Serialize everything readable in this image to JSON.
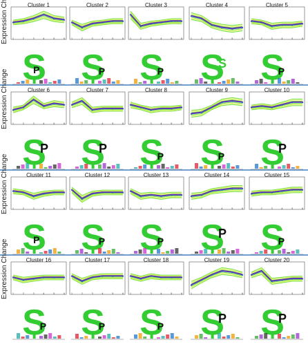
{
  "side_label": "Expression Change",
  "colors": {
    "separator": "#6f9fd0",
    "line_green": "#6fe03a",
    "line_yellow": "#d8ee40",
    "line_cyan": "#49c4d6",
    "line_blue": "#3a4fc9",
    "line_purple": "#6a2fa8",
    "logo_S": "#33cc33",
    "logo_P": "#111111"
  },
  "chart_data": [
    {
      "type": "line",
      "title": "Cluster 1",
      "x": [
        1,
        2,
        3,
        4,
        5,
        6
      ],
      "series": [
        {
          "values": [
            0.0,
            0.1,
            0.3,
            0.6,
            0.3,
            0.2
          ]
        }
      ]
    },
    {
      "type": "line",
      "title": "Cluster 2",
      "x": [
        1,
        2,
        3,
        4,
        5,
        6
      ],
      "series": [
        {
          "values": [
            0.0,
            -0.4,
            -0.1,
            0.0,
            0.1,
            0.1
          ]
        }
      ]
    },
    {
      "type": "line",
      "title": "Cluster 3",
      "x": [
        1,
        2,
        3,
        4,
        5,
        6
      ],
      "series": [
        {
          "values": [
            0.6,
            -0.3,
            -0.1,
            0.0,
            0.1,
            0.1
          ]
        }
      ]
    },
    {
      "type": "line",
      "title": "Cluster 4",
      "x": [
        1,
        2,
        3,
        4,
        5,
        6
      ],
      "series": [
        {
          "values": [
            0.5,
            0.3,
            -0.2,
            -0.4,
            -0.5,
            -0.4
          ]
        }
      ]
    },
    {
      "type": "line",
      "title": "Cluster 5",
      "x": [
        1,
        2,
        3,
        4,
        5,
        6
      ],
      "series": [
        {
          "values": [
            0.1,
            0.0,
            -0.3,
            -0.2,
            -0.2,
            -0.1
          ]
        }
      ]
    },
    {
      "type": "line",
      "title": "Cluster 6",
      "x": [
        1,
        2,
        3,
        4,
        5,
        6
      ],
      "series": [
        {
          "values": [
            -0.2,
            0.0,
            0.6,
            0.1,
            0.3,
            0.2
          ]
        }
      ]
    },
    {
      "type": "line",
      "title": "Cluster 7",
      "x": [
        1,
        2,
        3,
        4,
        5,
        6
      ],
      "series": [
        {
          "values": [
            0.2,
            0.5,
            -0.2,
            -0.1,
            -0.1,
            -0.1
          ]
        }
      ]
    },
    {
      "type": "line",
      "title": "Cluster 8",
      "x": [
        1,
        2,
        3,
        4,
        5,
        6
      ],
      "series": [
        {
          "values": [
            0.2,
            0.0,
            -0.2,
            -0.1,
            -0.1,
            0.0
          ]
        }
      ]
    },
    {
      "type": "line",
      "title": "Cluster 9",
      "x": [
        1,
        2,
        3,
        4,
        5,
        6
      ],
      "series": [
        {
          "values": [
            -0.5,
            -0.4,
            0.0,
            0.4,
            0.5,
            0.4
          ]
        }
      ]
    },
    {
      "type": "line",
      "title": "Cluster 10",
      "x": [
        1,
        2,
        3,
        4,
        5,
        6
      ],
      "series": [
        {
          "values": [
            0.0,
            0.1,
            0.0,
            0.2,
            0.4,
            0.4
          ]
        }
      ]
    },
    {
      "type": "line",
      "title": "Cluster 11",
      "x": [
        1,
        2,
        3,
        4,
        5,
        6
      ],
      "series": [
        {
          "values": [
            0.1,
            0.0,
            -0.3,
            -0.1,
            0.0,
            0.0
          ]
        }
      ]
    },
    {
      "type": "line",
      "title": "Cluster 12",
      "x": [
        1,
        2,
        3,
        4,
        5,
        6
      ],
      "series": [
        {
          "values": [
            0.2,
            -0.5,
            -0.1,
            0.0,
            0.0,
            0.0
          ]
        }
      ]
    },
    {
      "type": "line",
      "title": "Cluster 13",
      "x": [
        1,
        2,
        3,
        4,
        5,
        6
      ],
      "series": [
        {
          "values": [
            0.1,
            -0.3,
            -0.2,
            -0.3,
            -0.2,
            -0.2
          ]
        }
      ]
    },
    {
      "type": "line",
      "title": "Cluster 14",
      "x": [
        1,
        2,
        3,
        4,
        5,
        6
      ],
      "series": [
        {
          "values": [
            -0.3,
            -0.2,
            0.1,
            0.2,
            0.3,
            0.3
          ]
        }
      ]
    },
    {
      "type": "line",
      "title": "Cluster 15",
      "x": [
        1,
        2,
        3,
        4,
        5,
        6
      ],
      "series": [
        {
          "values": [
            -0.1,
            0.0,
            0.0,
            0.1,
            0.2,
            0.2
          ]
        }
      ]
    },
    {
      "type": "line",
      "title": "Cluster 16",
      "x": [
        1,
        2,
        3,
        4,
        5,
        6
      ],
      "series": [
        {
          "values": [
            0.0,
            -0.2,
            -0.1,
            0.0,
            0.0,
            0.0
          ]
        }
      ]
    },
    {
      "type": "line",
      "title": "Cluster 17",
      "x": [
        1,
        2,
        3,
        4,
        5,
        6
      ],
      "series": [
        {
          "values": [
            0.1,
            -0.3,
            0.0,
            0.1,
            0.1,
            0.1
          ]
        }
      ]
    },
    {
      "type": "line",
      "title": "Cluster 18",
      "x": [
        1,
        2,
        3,
        4,
        5,
        6
      ],
      "series": [
        {
          "values": [
            0.1,
            -0.1,
            0.1,
            0.0,
            0.0,
            0.0
          ]
        }
      ]
    },
    {
      "type": "line",
      "title": "Cluster 19",
      "x": [
        1,
        2,
        3,
        4,
        5,
        6
      ],
      "series": [
        {
          "values": [
            -0.6,
            -0.2,
            0.2,
            0.5,
            0.4,
            0.2
          ]
        }
      ]
    },
    {
      "type": "line",
      "title": "Cluster 20",
      "x": [
        1,
        2,
        3,
        4,
        5,
        6
      ],
      "series": [
        {
          "values": [
            0.2,
            0.5,
            -0.3,
            -0.2,
            -0.1,
            -0.1
          ]
        }
      ]
    }
  ],
  "logos": [
    {
      "main": "S",
      "secondary": "P",
      "secondary_position": "left-low"
    },
    {
      "main": "S",
      "secondary": "P",
      "secondary_position": "right-low"
    },
    {
      "main": "S",
      "secondary": "P",
      "secondary_position": "right-low"
    },
    {
      "main": "S",
      "secondary": "S",
      "secondary_position": "right-mid"
    },
    {
      "main": "S",
      "secondary": "P",
      "secondary_position": "right-low"
    },
    {
      "main": "S",
      "secondary": "P",
      "secondary_position": "right-mid"
    },
    {
      "main": "S",
      "secondary": "P",
      "secondary_position": "right-mid"
    },
    {
      "main": "S",
      "secondary": "P",
      "secondary_position": "right-low"
    },
    {
      "main": "S",
      "secondary": "P",
      "secondary_position": "right-low"
    },
    {
      "main": "S",
      "secondary": "P",
      "secondary_position": "right-mid"
    },
    {
      "main": "S",
      "secondary": "P",
      "secondary_position": "left-low"
    },
    {
      "main": "S",
      "secondary": "P",
      "secondary_position": "right-low"
    },
    {
      "main": "S",
      "secondary": "P",
      "secondary_position": "right-low"
    },
    {
      "main": "S",
      "secondary": "P",
      "secondary_position": "right-mid"
    },
    {
      "main": "S",
      "secondary": "P",
      "secondary_position": "right-low"
    },
    {
      "main": "S",
      "secondary": "P",
      "secondary_position": "right-low"
    },
    {
      "main": "S",
      "secondary": "P",
      "secondary_position": "right-low"
    },
    {
      "main": "S",
      "secondary": "P",
      "secondary_position": "right-low"
    },
    {
      "main": "S",
      "secondary": "P",
      "secondary_position": "right-mid"
    },
    {
      "main": "S",
      "secondary": "P",
      "secondary_position": "right-mid"
    }
  ]
}
